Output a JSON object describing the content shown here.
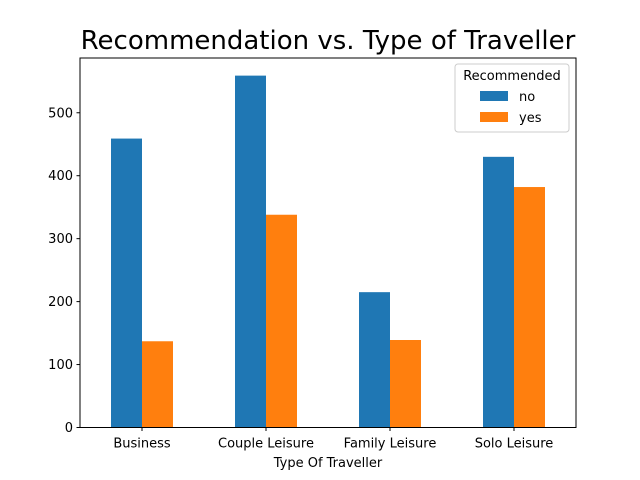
{
  "chart_data": {
    "type": "bar",
    "title": "Recommendation vs. Type of Traveller",
    "xlabel": "Type Of Traveller",
    "ylabel": "",
    "categories": [
      "Business",
      "Couple Leisure",
      "Family Leisure",
      "Solo Leisure"
    ],
    "series": [
      {
        "name": "no",
        "color": "#1f77b4",
        "values": [
          459,
          559,
          215,
          430
        ]
      },
      {
        "name": "yes",
        "color": "#ff7f0e",
        "values": [
          137,
          338,
          139,
          382
        ]
      }
    ],
    "ylim": [
      0,
      587
    ],
    "yticks": [
      0,
      100,
      200,
      300,
      400,
      500
    ],
    "legend": {
      "title": "Recommended",
      "position": "top-right"
    },
    "grid": false
  }
}
